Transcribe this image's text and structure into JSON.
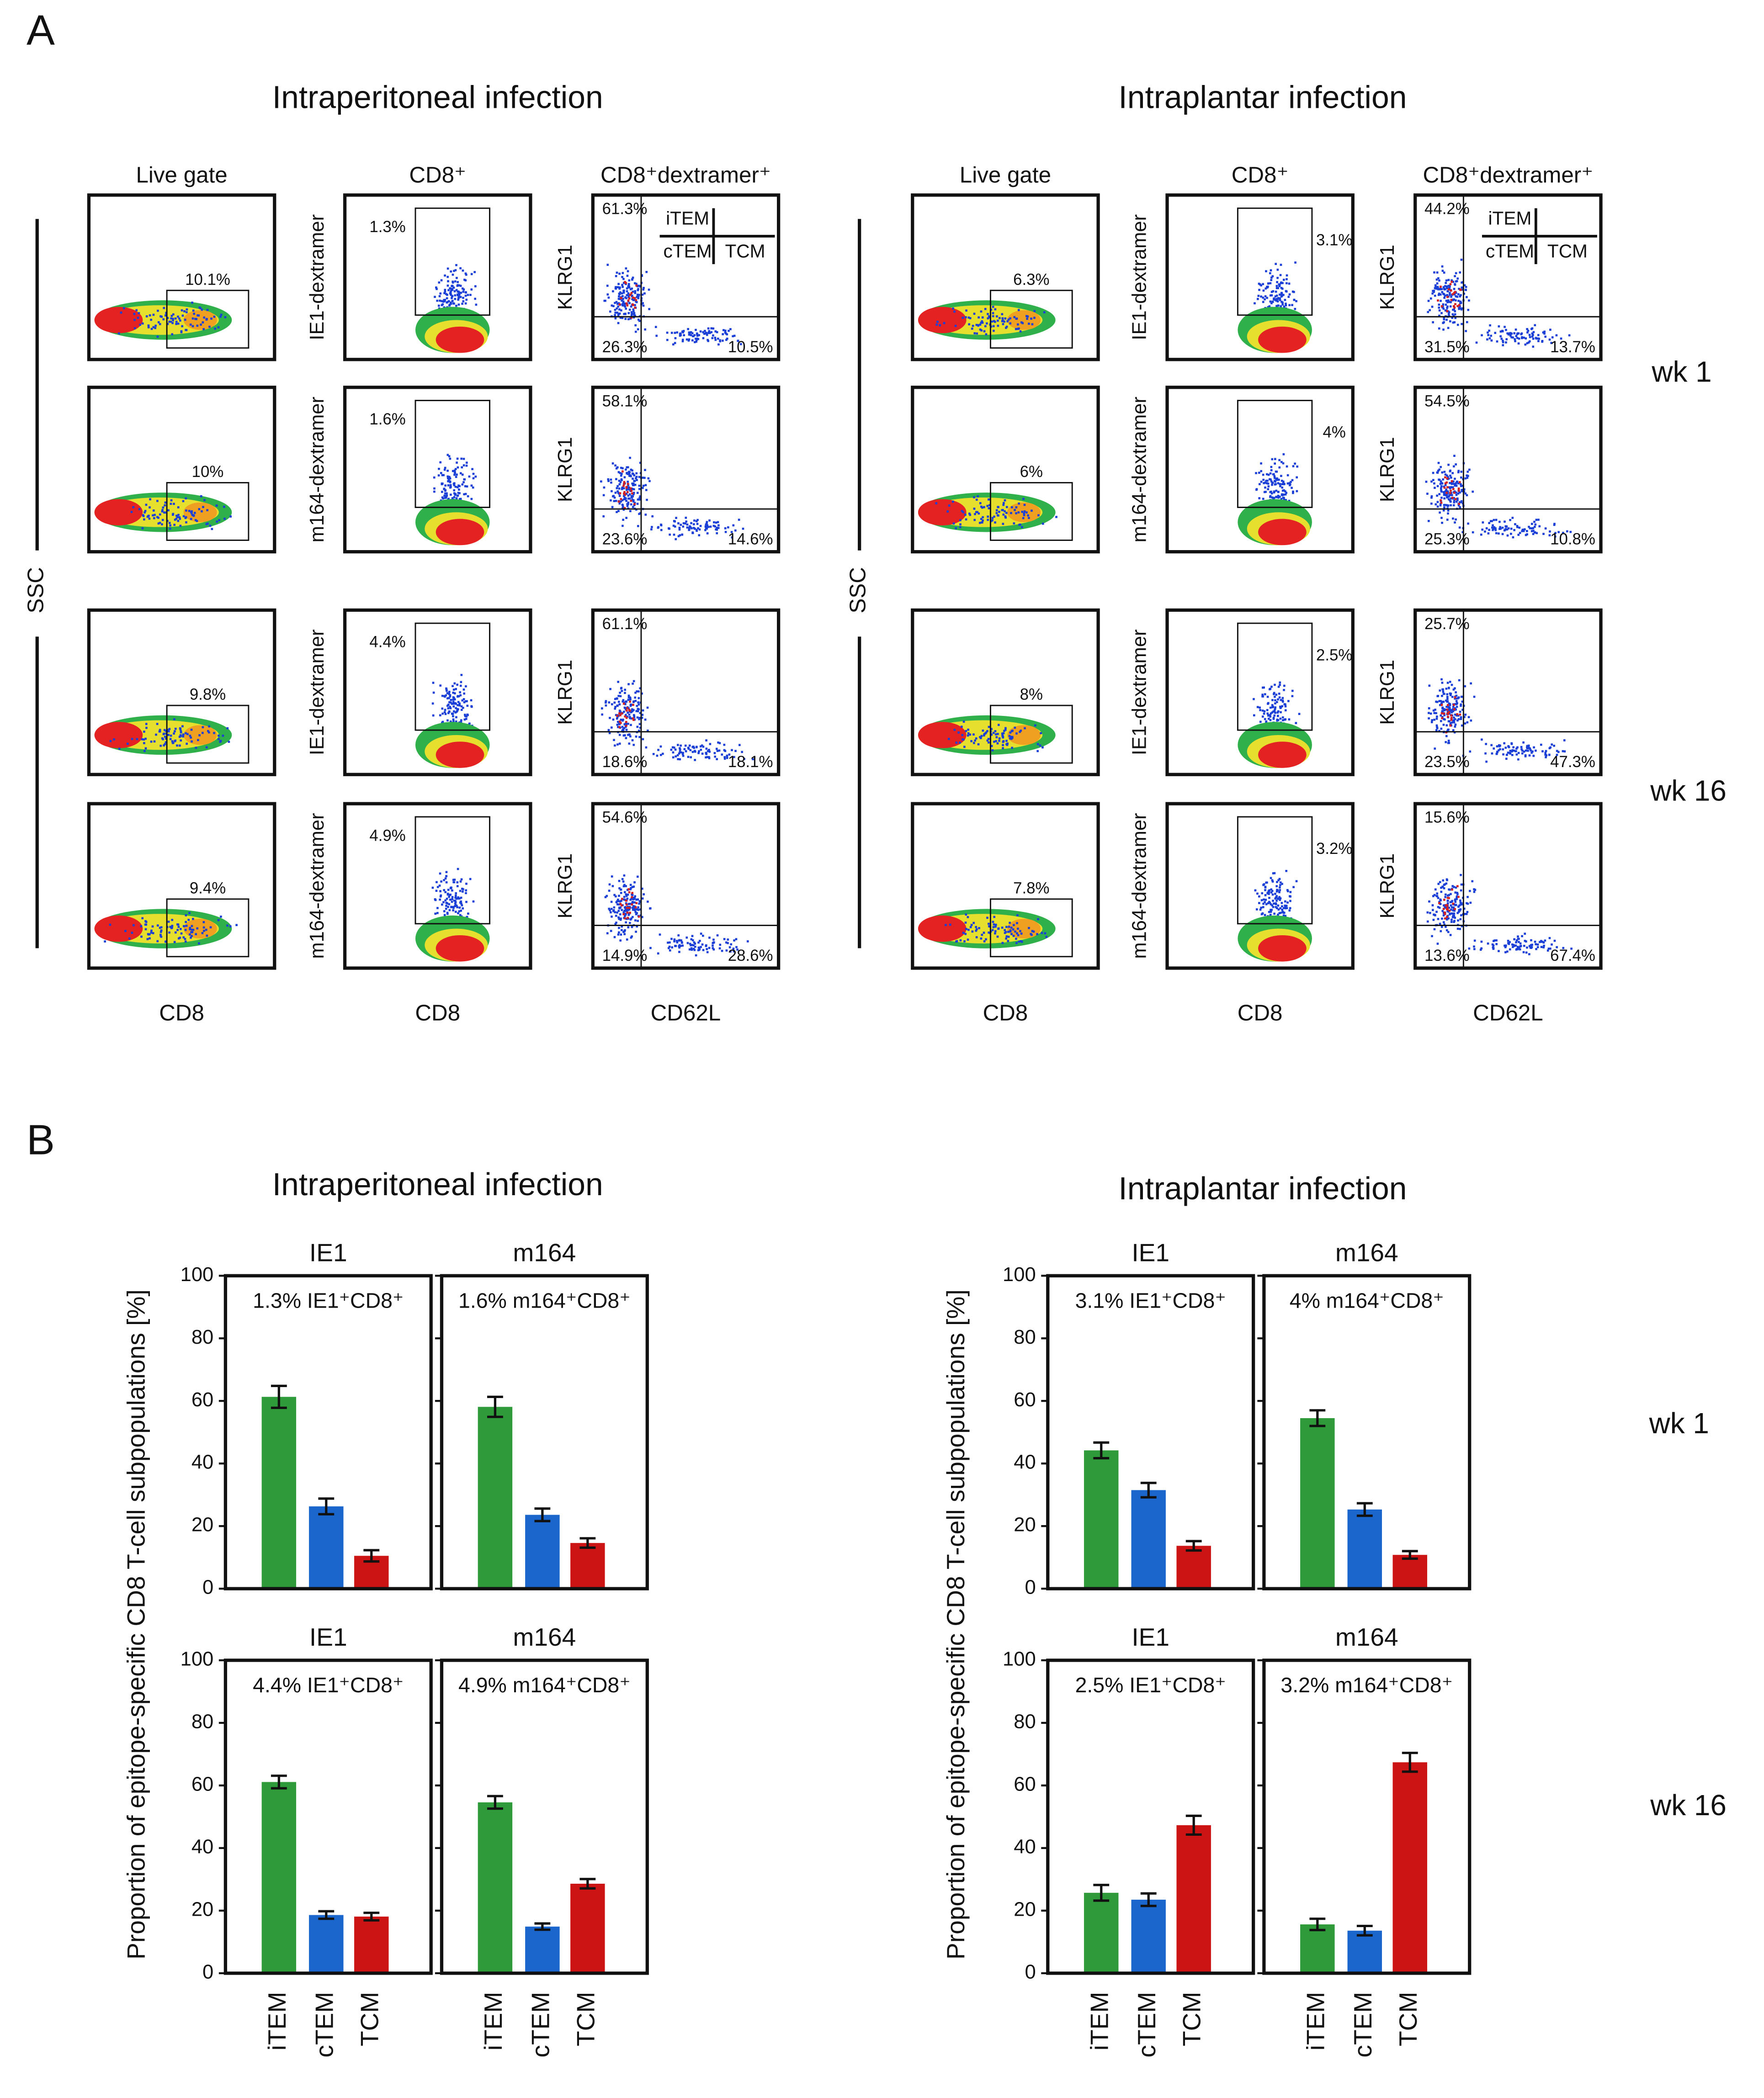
{
  "panel_a": {
    "label": "A",
    "column_headers": [
      "Live gate",
      "CD8⁺",
      "CD8⁺dextramer⁺"
    ],
    "x_labels": [
      "CD8",
      "CD8",
      "CD62L"
    ],
    "ssc_label": "SSC",
    "klrg1_label": "KLRG1",
    "quadrant_legend": [
      "iTEM",
      "cTEM",
      "TCM"
    ],
    "row_labels": [
      "wk 1",
      "wk 16"
    ],
    "groups": [
      {
        "title": "Intraperitoneal infection",
        "rows": [
          {
            "dextramer_label": "IE1-dextramer",
            "live_gate": "10.1%",
            "dextramer_gate": "1.3%",
            "quadrants": [
              "61.3%",
              "26.3%",
              "10.5%"
            ]
          },
          {
            "dextramer_label": "m164-dextramer",
            "live_gate": "10%",
            "dextramer_gate": "1.6%",
            "quadrants": [
              "58.1%",
              "23.6%",
              "14.6%"
            ]
          },
          {
            "dextramer_label": "IE1-dextramer",
            "live_gate": "9.8%",
            "dextramer_gate": "4.4%",
            "quadrants": [
              "61.1%",
              "18.6%",
              "18.1%"
            ]
          },
          {
            "dextramer_label": "m164-dextramer",
            "live_gate": "9.4%",
            "dextramer_gate": "4.9%",
            "quadrants": [
              "54.6%",
              "14.9%",
              "28.6%"
            ]
          }
        ]
      },
      {
        "title": "Intraplantar infection",
        "rows": [
          {
            "dextramer_label": "IE1-dextramer",
            "live_gate": "6.3%",
            "dextramer_gate": "3.1%",
            "quadrants": [
              "44.2%",
              "31.5%",
              "13.7%"
            ]
          },
          {
            "dextramer_label": "m164-dextramer",
            "live_gate": "6%",
            "dextramer_gate": "4%",
            "quadrants": [
              "54.5%",
              "25.3%",
              "10.8%"
            ]
          },
          {
            "dextramer_label": "IE1-dextramer",
            "live_gate": "8%",
            "dextramer_gate": "2.5%",
            "quadrants": [
              "25.7%",
              "23.5%",
              "47.3%"
            ]
          },
          {
            "dextramer_label": "m164-dextramer",
            "live_gate": "7.8%",
            "dextramer_gate": "3.2%",
            "quadrants": [
              "15.6%",
              "13.6%",
              "67.4%"
            ]
          }
        ]
      }
    ]
  },
  "panel_b": {
    "label": "B",
    "group_titles": [
      "Intraperitoneal infection",
      "Intraplantar infection"
    ],
    "y_label": "Proportion of epitope-specific CD8 T-cell subpopulations [%]",
    "row_labels": [
      "wk 1",
      "wk 16"
    ]
  },
  "chart_data": [
    {
      "type": "bar",
      "title": "IE1",
      "annotation": "1.3% IE1⁺CD8⁺",
      "values": [
        61.3,
        26.3,
        10.5
      ],
      "errors": [
        3.5,
        2.5,
        1.8
      ],
      "colors": [
        "#2f9a3a",
        "#1a66cc",
        "#cc1414"
      ],
      "ylim": [
        0,
        100
      ],
      "yticks": [
        0,
        20,
        40,
        60,
        80,
        100
      ]
    },
    {
      "type": "bar",
      "title": "m164",
      "annotation": "1.6% m164⁺CD8⁺",
      "values": [
        58.1,
        23.6,
        14.6
      ],
      "errors": [
        3.2,
        2,
        1.5
      ],
      "colors": [
        "#2f9a3a",
        "#1a66cc",
        "#cc1414"
      ],
      "ylim": [
        0,
        100
      ],
      "yticks": [
        0,
        20,
        40,
        60,
        80,
        100
      ]
    },
    {
      "type": "bar",
      "title": "IE1",
      "annotation": "4.4% IE1⁺CD8⁺",
      "categories": [
        "iTEM",
        "cTEM",
        "TCM"
      ],
      "values": [
        61.1,
        18.6,
        18.1
      ],
      "errors": [
        2,
        1.2,
        1.2
      ],
      "colors": [
        "#2f9a3a",
        "#1a66cc",
        "#cc1414"
      ],
      "ylim": [
        0,
        100
      ],
      "yticks": [
        0,
        20,
        40,
        60,
        80,
        100
      ]
    },
    {
      "type": "bar",
      "title": "m164",
      "annotation": "4.9% m164⁺CD8⁺",
      "categories": [
        "iTEM",
        "cTEM",
        "TCM"
      ],
      "values": [
        54.6,
        14.9,
        28.6
      ],
      "errors": [
        2,
        1,
        1.5
      ],
      "colors": [
        "#2f9a3a",
        "#1a66cc",
        "#cc1414"
      ],
      "ylim": [
        0,
        100
      ],
      "yticks": [
        0,
        20,
        40,
        60,
        80,
        100
      ]
    },
    {
      "type": "bar",
      "title": "IE1",
      "annotation": "3.1% IE1⁺CD8⁺",
      "values": [
        44.2,
        31.5,
        13.7
      ],
      "errors": [
        2.5,
        2.3,
        1.5
      ],
      "colors": [
        "#2f9a3a",
        "#1a66cc",
        "#cc1414"
      ],
      "ylim": [
        0,
        100
      ],
      "yticks": [
        0,
        20,
        40,
        60,
        80,
        100
      ]
    },
    {
      "type": "bar",
      "title": "m164",
      "annotation": "4% m164⁺CD8⁺",
      "values": [
        54.5,
        25.3,
        10.8
      ],
      "errors": [
        2.5,
        2,
        1.2
      ],
      "colors": [
        "#2f9a3a",
        "#1a66cc",
        "#cc1414"
      ],
      "ylim": [
        0,
        100
      ],
      "yticks": [
        0,
        20,
        40,
        60,
        80,
        100
      ]
    },
    {
      "type": "bar",
      "title": "IE1",
      "annotation": "2.5% IE1⁺CD8⁺",
      "categories": [
        "iTEM",
        "cTEM",
        "TCM"
      ],
      "values": [
        25.7,
        23.5,
        47.3
      ],
      "errors": [
        2.5,
        2,
        3
      ],
      "colors": [
        "#2f9a3a",
        "#1a66cc",
        "#cc1414"
      ],
      "ylim": [
        0,
        100
      ],
      "yticks": [
        0,
        20,
        40,
        60,
        80,
        100
      ]
    },
    {
      "type": "bar",
      "title": "m164",
      "annotation": "3.2% m164⁺CD8⁺",
      "categories": [
        "iTEM",
        "cTEM",
        "TCM"
      ],
      "values": [
        15.6,
        13.6,
        67.4
      ],
      "errors": [
        1.8,
        1.5,
        3
      ],
      "colors": [
        "#2f9a3a",
        "#1a66cc",
        "#cc1414"
      ],
      "ylim": [
        0,
        100
      ],
      "yticks": [
        0,
        20,
        40,
        60,
        80,
        100
      ]
    }
  ]
}
